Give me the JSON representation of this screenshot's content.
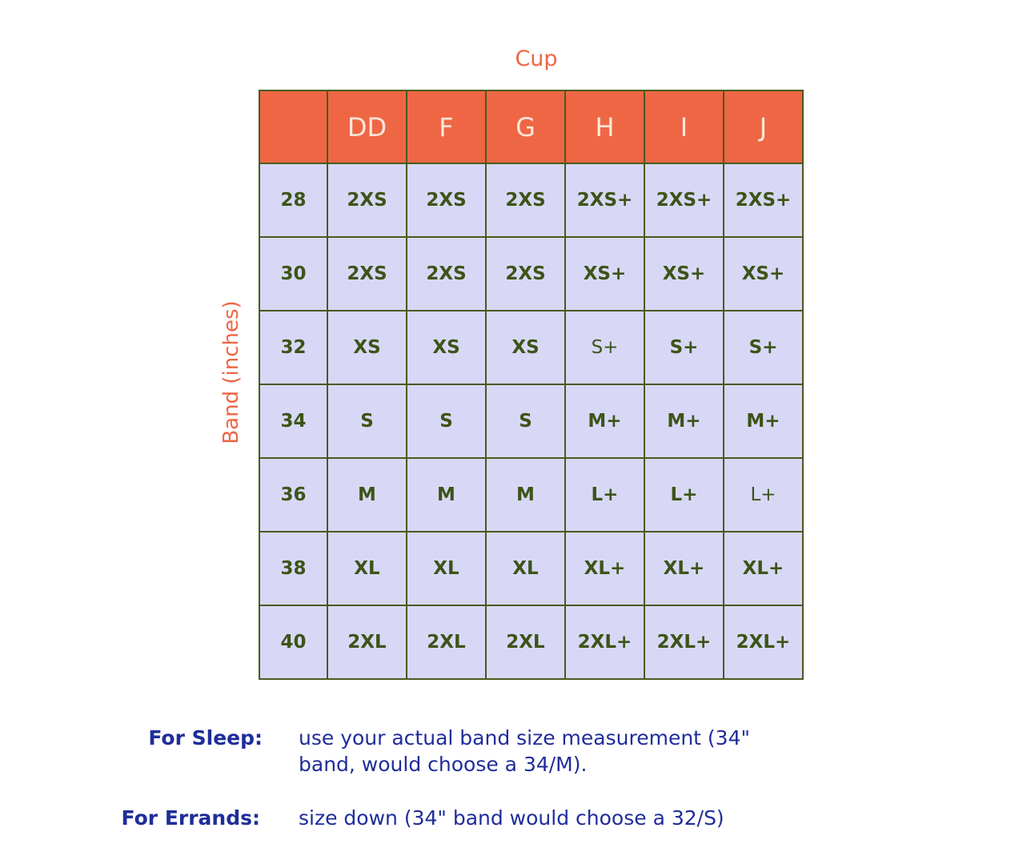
{
  "cup_axis_label": "Cup",
  "band_axis_label": "Band (inches)",
  "columns": [
    "",
    "DD",
    "F",
    "G",
    "H",
    "I",
    "J"
  ],
  "rows": [
    {
      "band": "28",
      "sizes": [
        "2XS",
        "2XS",
        "2XS",
        "2XS+",
        "2XS+",
        "2XS+"
      ]
    },
    {
      "band": "30",
      "sizes": [
        "2XS",
        "2XS",
        "2XS",
        "XS+",
        "XS+",
        "XS+"
      ]
    },
    {
      "band": "32",
      "sizes": [
        "XS",
        "XS",
        "XS",
        "S+",
        "S+",
        "S+"
      ]
    },
    {
      "band": "34",
      "sizes": [
        "S",
        "S",
        "S",
        "M+",
        "M+",
        "M+"
      ]
    },
    {
      "band": "36",
      "sizes": [
        "M",
        "M",
        "M",
        "L+",
        "L+",
        "L+"
      ]
    },
    {
      "band": "38",
      "sizes": [
        "XL",
        "XL",
        "XL",
        "XL+",
        "XL+",
        "XL+"
      ]
    },
    {
      "band": "40",
      "sizes": [
        "2XL",
        "2XL",
        "2XL",
        "2XL+",
        "2XL+",
        "2XL+"
      ]
    }
  ],
  "notes": {
    "sleep_label": "For Sleep:",
    "sleep_line1": "use your actual band size measurement (34\"",
    "sleep_line2": "band, would choose a 34/M).",
    "errands_label": "For Errands:",
    "errands_text": "size down (34\" band would choose a 32/S)"
  },
  "colors": {
    "header": "#ef6645",
    "cell": "#d8d8f6",
    "border": "#4a5a1e",
    "note_text": "#1f2d9a"
  }
}
